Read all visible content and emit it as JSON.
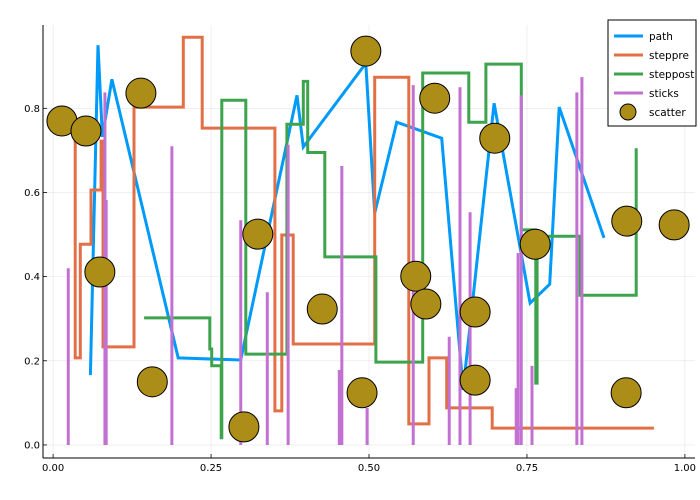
{
  "chart_data": {
    "type": "line",
    "title": "",
    "xlabel": "",
    "ylabel": "",
    "xlim": [
      -0.016,
      1.016
    ],
    "ylim": [
      -0.031,
      0.998
    ],
    "grid": true,
    "legend_position": "top-right",
    "xticks": [
      0.0,
      0.25,
      0.5,
      0.75,
      1.0
    ],
    "xtick_labels": [
      "0.00",
      "0.25",
      "0.50",
      "0.75",
      "1.00"
    ],
    "yticks": [
      0.0,
      0.2,
      0.4,
      0.6,
      0.8
    ],
    "ytick_labels": [
      "0.0",
      "0.2",
      "0.4",
      "0.6",
      "0.8"
    ],
    "series": [
      {
        "name": "path",
        "kind": "path",
        "color": "#009af9",
        "x": [
          0.059,
          0.071,
          0.078,
          0.093,
          0.198,
          0.297,
          0.386,
          0.396,
          0.495,
          0.509,
          0.544,
          0.615,
          0.649,
          0.698,
          0.755,
          0.786,
          0.801,
          0.872
        ],
        "y": [
          0.166,
          0.95,
          0.732,
          0.869,
          0.207,
          0.202,
          0.831,
          0.708,
          0.907,
          0.551,
          0.767,
          0.729,
          0.131,
          0.812,
          0.337,
          0.382,
          0.803,
          0.492
        ]
      },
      {
        "name": "steppre",
        "kind": "steppre",
        "color": "#e26f46",
        "x": [
          0.035,
          0.043,
          0.06,
          0.076,
          0.079,
          0.128,
          0.206,
          0.236,
          0.351,
          0.362,
          0.38,
          0.509,
          0.563,
          0.595,
          0.623,
          0.695,
          0.951
        ],
        "y": [
          0.743,
          0.207,
          0.477,
          0.606,
          0.722,
          0.233,
          0.803,
          0.969,
          0.753,
          0.081,
          0.499,
          0.24,
          0.874,
          0.05,
          0.207,
          0.088,
          0.04
        ]
      },
      {
        "name": "steppost",
        "kind": "steppost",
        "color": "#3da44d",
        "x": [
          0.144,
          0.248,
          0.251,
          0.266,
          0.267,
          0.305,
          0.37,
          0.396,
          0.403,
          0.43,
          0.511,
          0.585,
          0.658,
          0.685,
          0.741,
          0.764,
          0.766,
          0.834,
          0.923
        ],
        "y": [
          0.302,
          0.228,
          0.188,
          0.017,
          0.819,
          0.216,
          0.762,
          0.864,
          0.695,
          0.447,
          0.197,
          0.884,
          0.767,
          0.905,
          0.511,
          0.147,
          0.496,
          0.356,
          0.705
        ]
      },
      {
        "name": "sticks",
        "kind": "sticks",
        "color": "#c271d2",
        "x": [
          0.024,
          0.082,
          0.084,
          0.188,
          0.297,
          0.339,
          0.372,
          0.453,
          0.457,
          0.497,
          0.57,
          0.627,
          0.644,
          0.66,
          0.733,
          0.736,
          0.741,
          0.758,
          0.829,
          0.837
        ],
        "y": [
          0.42,
          0.838,
          0.582,
          0.71,
          0.534,
          0.363,
          0.713,
          0.178,
          0.663,
          0.088,
          0.855,
          0.257,
          0.85,
          0.553,
          0.135,
          0.456,
          0.831,
          0.188,
          0.838,
          0.874
        ]
      },
      {
        "name": "scatter",
        "kind": "scatter",
        "color": "#ac8d18",
        "x": [
          0.014,
          0.052,
          0.074,
          0.139,
          0.157,
          0.302,
          0.324,
          0.426,
          0.495,
          0.489,
          0.574,
          0.59,
          0.604,
          0.668,
          0.668,
          0.699,
          0.763,
          0.908,
          0.907,
          0.983
        ],
        "y": [
          0.77,
          0.746,
          0.411,
          0.836,
          0.15,
          0.043,
          0.501,
          0.323,
          0.936,
          0.124,
          0.401,
          0.335,
          0.824,
          0.316,
          0.154,
          0.729,
          0.477,
          0.532,
          0.124,
          0.523
        ]
      }
    ]
  }
}
